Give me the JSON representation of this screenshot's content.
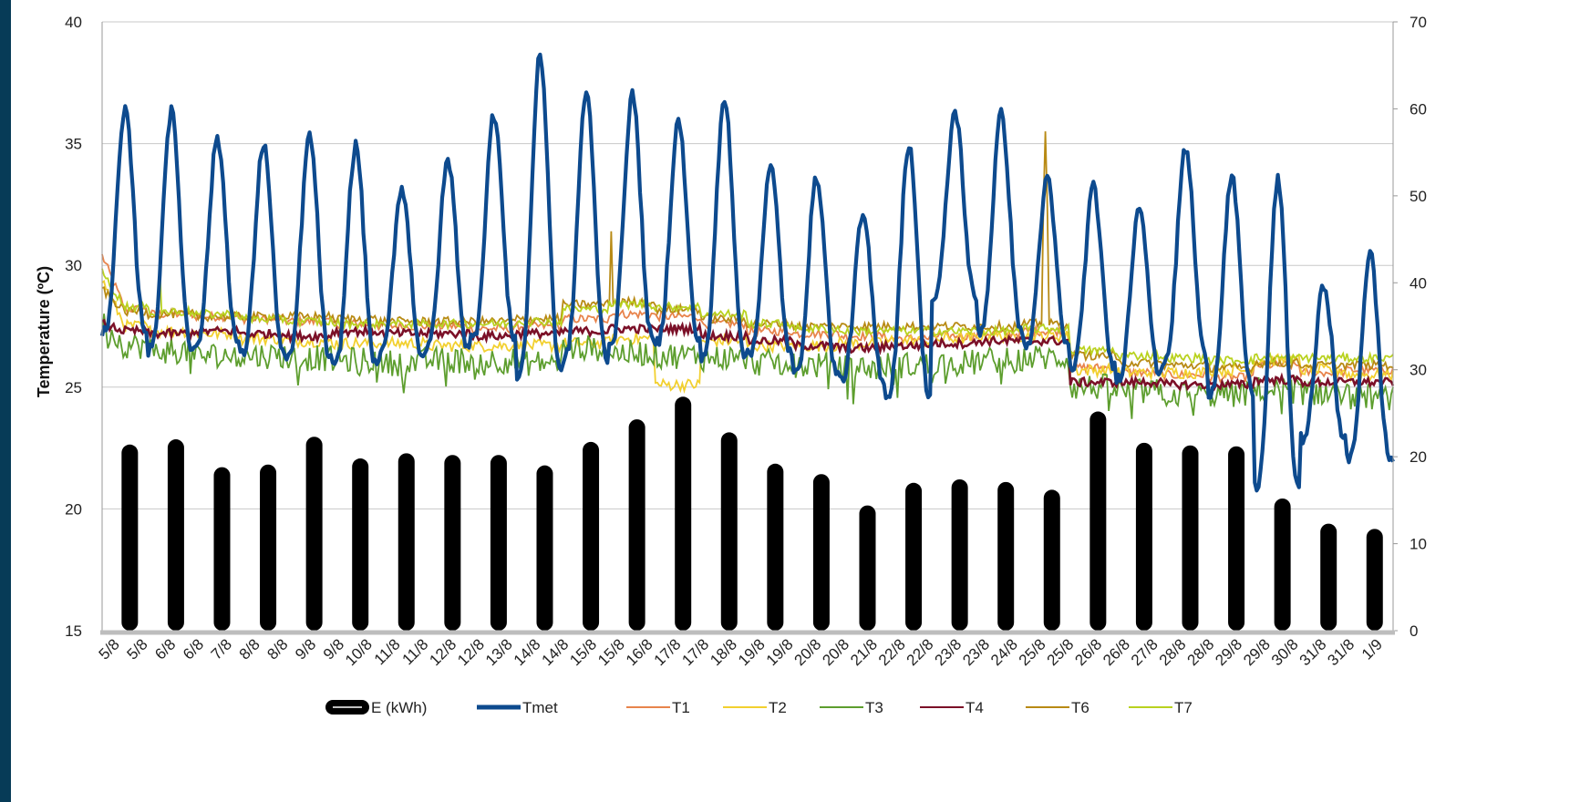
{
  "chart_data": {
    "type": "bar+line",
    "title": "",
    "ylabel_left": "Temperature (ºC)",
    "ylabel_right": "",
    "ylim_left": [
      15,
      40
    ],
    "yticks_left": [
      15,
      20,
      25,
      30,
      35,
      40
    ],
    "ylim_right": [
      0,
      70
    ],
    "yticks_right": [
      0,
      10,
      20,
      30,
      40,
      50,
      60,
      70
    ],
    "grid": true,
    "legend_position": "bottom",
    "x_tick_labels": [
      "5/8",
      "5/8",
      "6/8",
      "6/8",
      "7/8",
      "8/8",
      "8/8",
      "9/8",
      "9/8",
      "10/8",
      "11/8",
      "11/8",
      "12/8",
      "12/8",
      "13/8",
      "14/8",
      "14/8",
      "15/8",
      "15/8",
      "16/8",
      "17/8",
      "17/8",
      "18/8",
      "19/8",
      "19/8",
      "20/8",
      "20/8",
      "21/8",
      "22/8",
      "22/8",
      "23/8",
      "23/8",
      "24/8",
      "25/8",
      "25/8",
      "26/8",
      "26/8",
      "27/8",
      "28/8",
      "28/8",
      "29/8",
      "29/8",
      "30/8",
      "31/8",
      "31/8",
      "1/9"
    ],
    "energy": {
      "name": "E (kWh)",
      "color": "#000000",
      "axis": "right",
      "days": [
        "5/8",
        "6/8",
        "7/8",
        "8/8",
        "9/8",
        "10/8",
        "11/8",
        "12/8",
        "13/8",
        "14/8",
        "15/8",
        "16/8",
        "17/8",
        "18/8",
        "19/8",
        "20/8",
        "21/8",
        "22/8",
        "23/8",
        "24/8",
        "25/8",
        "26/8",
        "27/8",
        "28/8",
        "29/8",
        "30/8",
        "31/8",
        "1/9"
      ],
      "values": [
        21.4,
        22.0,
        18.8,
        19.1,
        22.3,
        19.8,
        20.4,
        20.2,
        20.2,
        19.0,
        21.7,
        24.3,
        26.9,
        22.8,
        19.2,
        18.0,
        14.4,
        17.0,
        17.4,
        17.1,
        16.2,
        25.2,
        21.6,
        21.3,
        21.2,
        15.2,
        12.3,
        11.7
      ]
    },
    "tmet": {
      "name": "Tmet",
      "color": "#0d4a8e",
      "axis": "left",
      "daily_max": [
        36.3,
        36.3,
        35.2,
        35.0,
        35.3,
        34.9,
        33.2,
        34.3,
        36.2,
        38.6,
        37.1,
        37.0,
        35.9,
        36.8,
        34.0,
        33.6,
        32.0,
        35.0,
        36.3,
        36.2,
        33.5,
        33.2,
        32.5,
        34.8,
        33.6,
        33.5,
        29.2,
        30.5
      ],
      "daily_min": [
        27.3,
        26.5,
        26.8,
        26.3,
        26.1,
        25.8,
        26.3,
        26.5,
        27.0,
        25.5,
        26.2,
        26.8,
        26.8,
        26.3,
        26.3,
        25.5,
        25.3,
        24.6,
        28.6,
        27.3,
        26.6,
        25.8,
        25.4,
        26.1,
        24.8,
        20.9,
        22.9,
        22.0
      ]
    },
    "series": [
      {
        "name": "T1",
        "color": "#e8844c",
        "start": 30.4,
        "level": [
          28.2,
          28.0,
          27.9,
          27.8,
          27.7,
          27.6,
          27.5,
          27.5,
          27.4,
          27.5,
          27.8,
          28.0,
          27.9,
          27.6,
          27.3,
          27.2,
          27.1,
          27.0,
          27.1,
          27.2,
          27.3,
          25.8,
          25.6,
          25.5,
          25.4,
          25.9,
          25.6,
          25.7
        ]
      },
      {
        "name": "T2",
        "color": "#f2d02f",
        "start": 29.4,
        "level": [
          27.5,
          27.3,
          27.2,
          27.0,
          26.9,
          26.8,
          26.8,
          26.7,
          26.7,
          26.7,
          26.8,
          27.0,
          25.1,
          26.9,
          26.7,
          26.7,
          26.8,
          26.9,
          27.0,
          27.1,
          27.1,
          25.7,
          25.6,
          25.6,
          25.7,
          26.1,
          25.7,
          25.5
        ]
      },
      {
        "name": "T3",
        "color": "#5d9e2e",
        "start": 27.6,
        "level": [
          26.7,
          26.5,
          26.3,
          26.3,
          26.2,
          26.1,
          26.0,
          26.1,
          26.1,
          26.0,
          26.6,
          26.4,
          26.3,
          26.2,
          26.0,
          25.9,
          25.8,
          25.9,
          26.0,
          26.1,
          26.2,
          25.0,
          24.8,
          24.7,
          24.7,
          24.9,
          24.8,
          24.6
        ]
      },
      {
        "name": "T4",
        "color": "#7b1028",
        "start": 27.6,
        "level": [
          27.3,
          27.2,
          27.3,
          27.2,
          27.1,
          27.3,
          27.2,
          27.2,
          27.1,
          27.2,
          27.3,
          27.4,
          27.4,
          27.1,
          26.9,
          26.7,
          26.6,
          26.7,
          26.8,
          26.9,
          26.9,
          25.2,
          25.2,
          25.1,
          25.1,
          25.3,
          25.2,
          25.2
        ]
      },
      {
        "name": "T6",
        "color": "#b88a14",
        "start": 29.0,
        "level": [
          28.1,
          28.0,
          27.9,
          27.9,
          27.9,
          27.8,
          27.7,
          27.7,
          27.7,
          27.8,
          28.4,
          28.5,
          28.2,
          27.8,
          27.6,
          27.5,
          27.5,
          27.5,
          27.5,
          27.5,
          27.6,
          26.3,
          26.0,
          25.9,
          25.8,
          26.0,
          25.9,
          25.9
        ]
      },
      {
        "name": "T7",
        "color": "#b9d21f",
        "start": 29.7,
        "level": [
          28.3,
          28.1,
          28.0,
          27.8,
          27.7,
          27.6,
          27.6,
          27.6,
          27.6,
          27.7,
          28.2,
          28.4,
          28.3,
          28.0,
          27.6,
          27.4,
          27.3,
          27.3,
          27.3,
          27.3,
          27.4,
          26.5,
          26.3,
          26.2,
          26.1,
          26.2,
          26.2,
          26.2
        ]
      }
    ]
  }
}
